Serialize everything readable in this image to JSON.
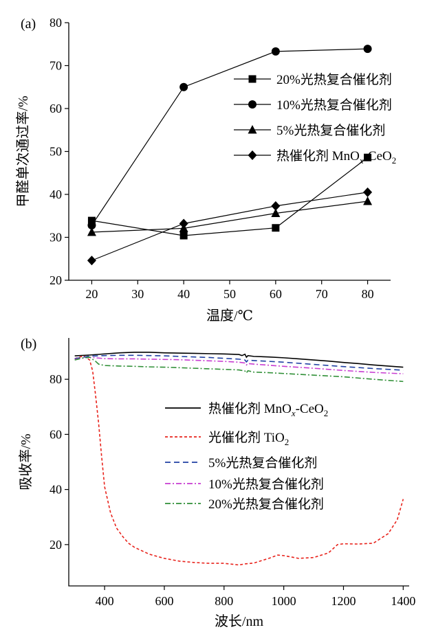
{
  "chart_data": [
    {
      "panel_label": "(a)",
      "type": "line",
      "xlabel": "温度/℃",
      "ylabel": "甲醛单次通过率/%",
      "xlim": [
        15,
        85
      ],
      "ylim": [
        20,
        80
      ],
      "xticks": [
        20,
        30,
        40,
        50,
        60,
        70,
        80
      ],
      "yticks": [
        20,
        30,
        40,
        50,
        60,
        70,
        80
      ],
      "legend_position": "center-right",
      "x": [
        20,
        40,
        60,
        80
      ],
      "series": [
        {
          "name": "20%光热复合催化剂",
          "marker": "square",
          "values": [
            33.9,
            30.4,
            32.2,
            48.6
          ]
        },
        {
          "name": "10%光热复合催化剂",
          "marker": "circle",
          "values": [
            32.8,
            65.0,
            73.3,
            73.9
          ]
        },
        {
          "name": "5%光热复合催化剂",
          "marker": "triangle",
          "values": [
            31.2,
            32.1,
            35.6,
            38.4
          ]
        },
        {
          "name": "热催化剂 MnOx-CeO2",
          "name_main": "热催化剂 MnO",
          "name_sub1": "x",
          "name_mid": "-CeO",
          "name_sub2": "2",
          "marker": "diamond",
          "values": [
            24.6,
            33.2,
            37.3,
            40.5
          ]
        }
      ]
    },
    {
      "panel_label": "(b)",
      "type": "line",
      "xlabel": "波长/nm",
      "ylabel": "吸收率/%",
      "xlim": [
        280,
        1420
      ],
      "ylim": [
        5,
        95
      ],
      "xticks": [
        400,
        600,
        800,
        1000,
        1200,
        1400
      ],
      "yticks": [
        20,
        40,
        60,
        80
      ],
      "legend_position": "center",
      "series": [
        {
          "name": "热催化剂 MnOx-CeO2",
          "name_main": "热催化剂 MnO",
          "name_sub1": "x",
          "name_mid": "-CeO",
          "name_sub2": "2",
          "color": "#000000",
          "dash": "",
          "x": [
            300,
            350,
            400,
            450,
            500,
            550,
            600,
            650,
            700,
            750,
            800,
            850,
            860,
            870,
            875,
            880,
            900,
            950,
            1000,
            1050,
            1100,
            1150,
            1200,
            1250,
            1300,
            1350,
            1400
          ],
          "values": [
            88.5,
            88.8,
            89.2,
            89.6,
            89.8,
            89.8,
            89.6,
            89.5,
            89.4,
            89.3,
            89.2,
            89.0,
            88.6,
            89.1,
            88.0,
            88.6,
            88.3,
            88.1,
            87.8,
            87.4,
            87.0,
            86.6,
            86.1,
            85.7,
            85.2,
            84.8,
            84.4
          ]
        },
        {
          "name": "光催化剂 TiO2",
          "name_main": "光催化剂 TiO",
          "name_sub1": "",
          "name_mid": "",
          "name_sub2": "2",
          "color": "#e8221b",
          "dash": "4,3",
          "x": [
            300,
            330,
            350,
            360,
            370,
            380,
            390,
            400,
            420,
            440,
            460,
            480,
            500,
            550,
            600,
            650,
            700,
            750,
            800,
            850,
            870,
            900,
            950,
            980,
            1000,
            1050,
            1100,
            1150,
            1180,
            1200,
            1250,
            1300,
            1350,
            1380,
            1400
          ],
          "values": [
            87.5,
            88.5,
            87.0,
            83.0,
            74.0,
            64.0,
            52.0,
            41.0,
            31.5,
            26.0,
            23.0,
            20.5,
            19.0,
            16.5,
            15.0,
            14.0,
            13.5,
            13.2,
            13.2,
            12.6,
            13.0,
            13.3,
            15.0,
            16.2,
            16.0,
            15.0,
            15.3,
            17.0,
            20.0,
            20.3,
            20.2,
            20.5,
            24.0,
            29.0,
            36.5
          ]
        },
        {
          "name": "5%光热复合催化剂",
          "color": "#1f3fa3",
          "dash": "8,5",
          "x": [
            300,
            350,
            400,
            450,
            500,
            550,
            600,
            650,
            700,
            750,
            800,
            850,
            870,
            875,
            880,
            900,
            950,
            1000,
            1100,
            1200,
            1300,
            1400
          ],
          "values": [
            87.5,
            88.4,
            88.6,
            88.7,
            88.7,
            88.6,
            88.5,
            88.3,
            88.1,
            87.9,
            87.6,
            87.3,
            87.0,
            86.3,
            86.9,
            86.8,
            86.5,
            86.2,
            85.4,
            84.6,
            83.9,
            83.3
          ]
        },
        {
          "name": "10%光热复合催化剂",
          "color": "#c73bd1",
          "dash": "8,3,2,3",
          "x": [
            300,
            350,
            400,
            450,
            500,
            550,
            600,
            650,
            700,
            750,
            800,
            850,
            870,
            875,
            880,
            900,
            950,
            1000,
            1100,
            1200,
            1300,
            1400
          ],
          "values": [
            87.3,
            88.0,
            87.5,
            87.4,
            87.4,
            87.3,
            87.2,
            87.1,
            86.9,
            86.7,
            86.5,
            86.2,
            85.9,
            85.2,
            85.7,
            85.5,
            85.1,
            84.7,
            84.0,
            83.2,
            82.5,
            82.0
          ]
        },
        {
          "name": "20%光热复合催化剂",
          "color": "#2f8f36",
          "dash": "8,3,2,3",
          "x": [
            300,
            330,
            350,
            370,
            380,
            400,
            450,
            500,
            550,
            600,
            650,
            700,
            750,
            800,
            850,
            870,
            875,
            880,
            900,
            950,
            1000,
            1100,
            1200,
            1300,
            1400
          ],
          "values": [
            87.0,
            87.8,
            88.0,
            86.5,
            85.5,
            85.0,
            84.8,
            84.7,
            84.5,
            84.4,
            84.2,
            84.0,
            83.8,
            83.6,
            83.4,
            83.0,
            82.3,
            83.1,
            82.6,
            82.4,
            82.1,
            81.5,
            80.9,
            80.0,
            79.2
          ]
        }
      ]
    }
  ]
}
